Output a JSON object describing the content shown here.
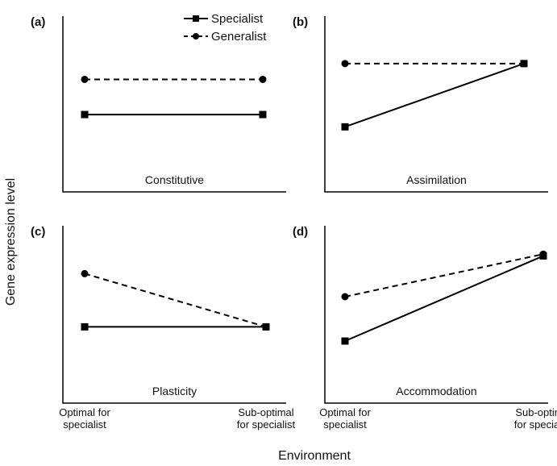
{
  "axis_labels": {
    "y": "Gene expression level",
    "x": "Environment"
  },
  "chart_data": [
    {
      "type": "line",
      "label": "(a)",
      "annotation": "Constitutive",
      "categories": [
        null,
        null
      ],
      "ylim": [
        0,
        100
      ],
      "series": [
        {
          "name": "Specialist",
          "color": "#000000",
          "dash": false,
          "marker": "square",
          "values": [
            44,
            44
          ]
        },
        {
          "name": "Generalist",
          "color": "#000000",
          "dash": true,
          "marker": "circle",
          "values": [
            64,
            64
          ]
        }
      ]
    },
    {
      "type": "line",
      "label": "(b)",
      "annotation": "Assimilation",
      "categories": [
        null,
        null
      ],
      "ylim": [
        0,
        100
      ],
      "series": [
        {
          "name": "Specialist",
          "color": "#000000",
          "dash": false,
          "marker": "square",
          "values": [
            37,
            73
          ]
        },
        {
          "name": "Generalist",
          "color": "#000000",
          "dash": true,
          "marker": "circle",
          "values": [
            73,
            73
          ]
        }
      ]
    },
    {
      "type": "line",
      "label": "(c)",
      "annotation": "Plasticity",
      "categories": [
        "Optimal for specialist",
        "Sub-optimal for specialist"
      ],
      "ylim": [
        0,
        100
      ],
      "series": [
        {
          "name": "Specialist",
          "color": "#000000",
          "dash": false,
          "marker": "square",
          "values": [
            43,
            43
          ]
        },
        {
          "name": "Generalist",
          "color": "#000000",
          "dash": true,
          "marker": "circle",
          "values": [
            73,
            43
          ]
        }
      ]
    },
    {
      "type": "line",
      "label": "(d)",
      "annotation": "Accommodation",
      "categories": [
        "Optimal for specialist",
        "Sub-optimal for specialist"
      ],
      "ylim": [
        0,
        100
      ],
      "series": [
        {
          "name": "Specialist",
          "color": "#000000",
          "dash": false,
          "marker": "square",
          "values": [
            35,
            83
          ]
        },
        {
          "name": "Generalist",
          "color": "#000000",
          "dash": true,
          "marker": "circle",
          "values": [
            60,
            84
          ]
        }
      ]
    }
  ]
}
